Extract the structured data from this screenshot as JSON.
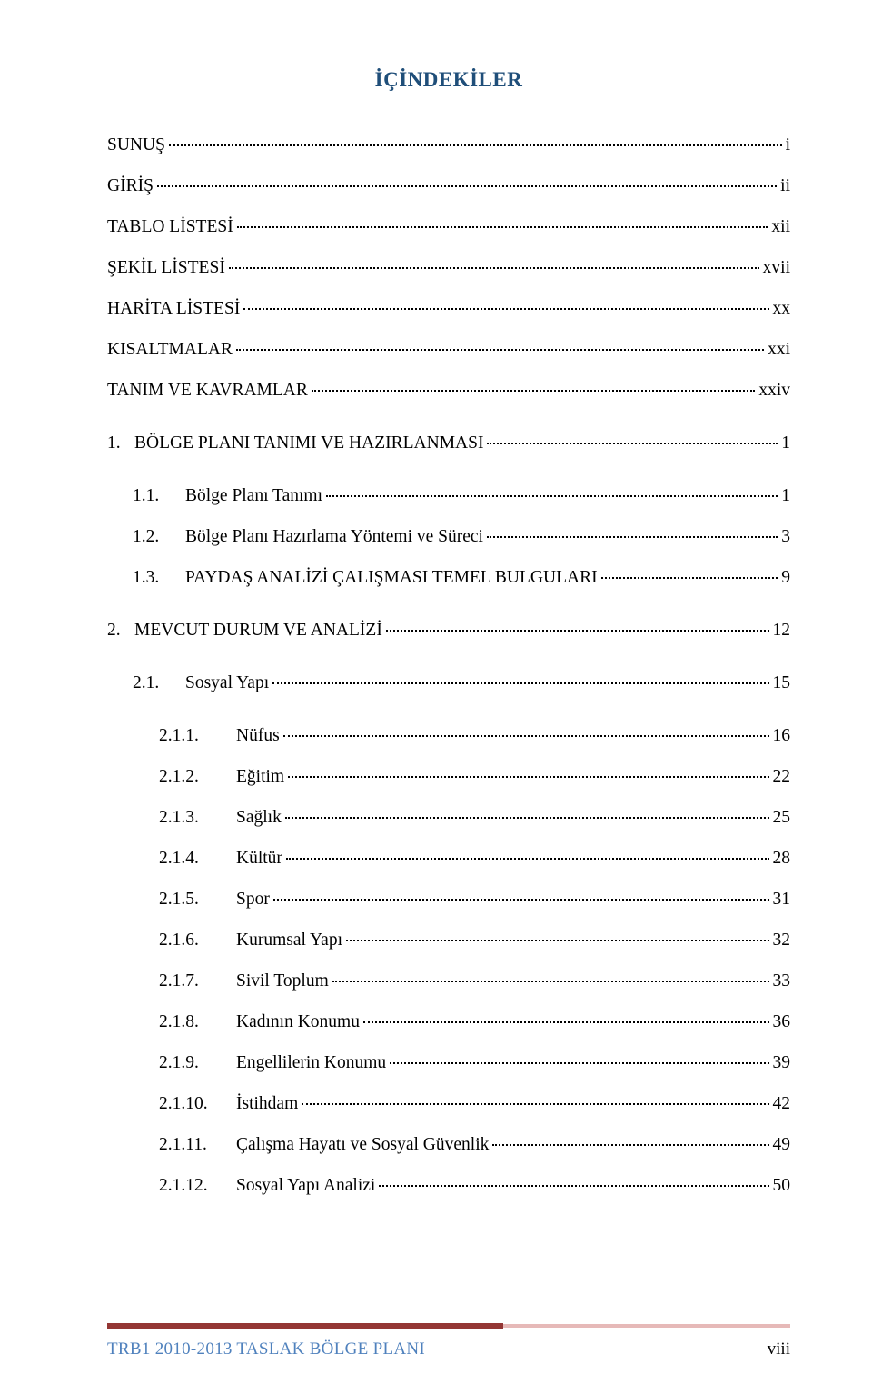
{
  "title": "İÇİNDEKİLER",
  "entries": [
    {
      "num": "",
      "label": "SUNUŞ",
      "page": "i",
      "level": 0,
      "gap": false
    },
    {
      "num": "",
      "label": "GİRİŞ",
      "page": "ii",
      "level": 0,
      "gap": false
    },
    {
      "num": "",
      "label": "TABLO LİSTESİ",
      "page": "xii",
      "level": 0,
      "gap": false
    },
    {
      "num": "",
      "label": "ŞEKİL LİSTESİ",
      "page": "xvii",
      "level": 0,
      "gap": false
    },
    {
      "num": "",
      "label": "HARİTA LİSTESİ",
      "page": "xx",
      "level": 0,
      "gap": false
    },
    {
      "num": "",
      "label": "KISALTMALAR",
      "page": "xxi",
      "level": 0,
      "gap": false
    },
    {
      "num": "",
      "label": "TANIM VE KAVRAMLAR",
      "page": "xxiv",
      "level": 0,
      "gap": true
    },
    {
      "num": "1.",
      "label": "BÖLGE PLANI TANIMI VE HAZIRLANMASI",
      "page": "1",
      "level": 0,
      "gap": true
    },
    {
      "num": "1.1.",
      "label": "Bölge Planı Tanımı",
      "page": "1",
      "level": 1,
      "gap": false
    },
    {
      "num": "1.2.",
      "label": "Bölge Planı Hazırlama Yöntemi ve Süreci",
      "page": "3",
      "level": 1,
      "gap": false
    },
    {
      "num": "1.3.",
      "label": "PAYDAŞ ANALİZİ ÇALIŞMASI TEMEL BULGULARI",
      "page": "9",
      "level": 1,
      "gap": true
    },
    {
      "num": "2.",
      "label": "MEVCUT DURUM VE ANALİZİ",
      "page": "12",
      "level": 0,
      "gap": true
    },
    {
      "num": "2.1.",
      "label": "Sosyal Yapı",
      "page": "15",
      "level": 1,
      "gap": true
    },
    {
      "num": "2.1.1.",
      "label": "Nüfus",
      "page": "16",
      "level": 2,
      "gap": false
    },
    {
      "num": "2.1.2.",
      "label": "Eğitim",
      "page": "22",
      "level": 2,
      "gap": false
    },
    {
      "num": "2.1.3.",
      "label": "Sağlık",
      "page": "25",
      "level": 2,
      "gap": false
    },
    {
      "num": "2.1.4.",
      "label": "Kültür",
      "page": "28",
      "level": 2,
      "gap": false
    },
    {
      "num": "2.1.5.",
      "label": "Spor",
      "page": "31",
      "level": 2,
      "gap": false
    },
    {
      "num": "2.1.6.",
      "label": "Kurumsal Yapı",
      "page": "32",
      "level": 2,
      "gap": false
    },
    {
      "num": "2.1.7.",
      "label": "Sivil Toplum",
      "page": "33",
      "level": 2,
      "gap": false
    },
    {
      "num": "2.1.8.",
      "label": "Kadının Konumu",
      "page": "36",
      "level": 2,
      "gap": false
    },
    {
      "num": "2.1.9.",
      "label": "Engellilerin Konumu",
      "page": "39",
      "level": 2,
      "gap": false
    },
    {
      "num": "2.1.10.",
      "label": "İstihdam",
      "page": "42",
      "level": 2,
      "gap": false
    },
    {
      "num": "2.1.11.",
      "label": "Çalışma Hayatı ve Sosyal Güvenlik",
      "page": "49",
      "level": 2,
      "gap": false
    },
    {
      "num": "2.1.12.",
      "label": "Sosyal Yapı Analizi",
      "page": "50",
      "level": 2,
      "gap": false
    }
  ],
  "footer": {
    "left": "TRB1 2010-2013 TASLAK BÖLGE PLANI",
    "right": "viii"
  },
  "colors": {
    "title": "#1f4e79",
    "text": "#000000",
    "footer_dark": "#943634",
    "footer_light": "#e6b9b8",
    "footer_text": "#4f81bd",
    "background": "#ffffff"
  }
}
